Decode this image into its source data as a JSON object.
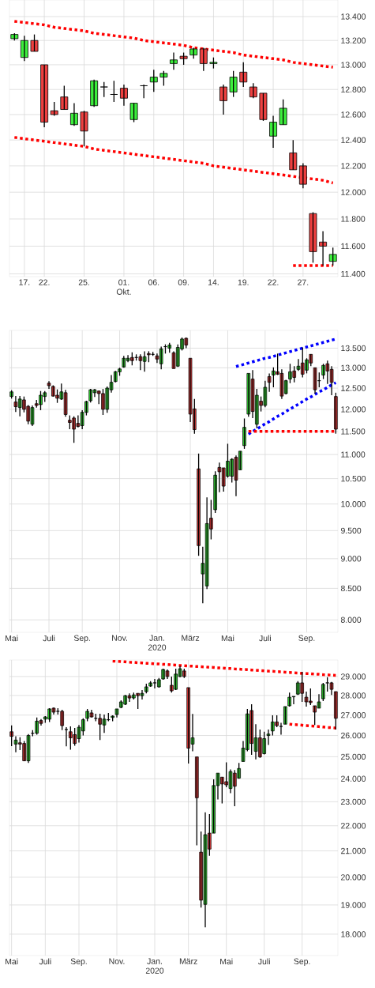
{
  "chart_data": [
    {
      "type": "candlestick",
      "log": true,
      "grid": true,
      "categories": [
        null,
        "17.",
        null,
        "22.",
        null,
        null,
        null,
        "25.",
        null,
        null,
        null,
        "01. Okt.",
        null,
        null,
        "06.",
        null,
        null,
        "09.",
        null,
        null,
        "14.",
        null,
        null,
        "19.",
        null,
        null,
        "22.",
        null,
        null,
        "27.",
        null,
        null,
        null
      ],
      "ohlc": [
        [
          13215,
          13260,
          13200,
          13250
        ],
        [
          13060,
          13240,
          13030,
          13200
        ],
        [
          13200,
          13250,
          13110,
          13110
        ],
        [
          13000,
          13000,
          12500,
          12540
        ],
        [
          12630,
          12700,
          12590,
          12600
        ],
        [
          12740,
          12830,
          12640,
          12640
        ],
        [
          12520,
          12690,
          12510,
          12610
        ],
        [
          12620,
          12630,
          12350,
          12470
        ],
        [
          12670,
          12880,
          12660,
          12870
        ],
        [
          12820,
          12860,
          12740,
          12820
        ],
        [
          12760,
          12870,
          12700,
          12760
        ],
        [
          12810,
          12840,
          12670,
          12730
        ],
        [
          12560,
          12690,
          12540,
          12690
        ],
        [
          12830,
          12840,
          12730,
          12830
        ],
        [
          12860,
          12960,
          12780,
          12900
        ],
        [
          12900,
          12950,
          12830,
          12930
        ],
        [
          13010,
          13100,
          12960,
          13040
        ],
        [
          13070,
          13100,
          13000,
          13050
        ],
        [
          13080,
          13140,
          13050,
          13130
        ],
        [
          13130,
          13140,
          12950,
          13010
        ],
        [
          13010,
          13060,
          12970,
          13020
        ],
        [
          12820,
          12840,
          12600,
          12710
        ],
        [
          12780,
          12950,
          12740,
          12900
        ],
        [
          12940,
          13020,
          12820,
          12860
        ],
        [
          12820,
          12850,
          12730,
          12740
        ],
        [
          12770,
          12770,
          12550,
          12560
        ],
        [
          12430,
          12590,
          12340,
          12540
        ],
        [
          12520,
          12720,
          12520,
          12650
        ],
        [
          12300,
          12400,
          12170,
          12170
        ],
        [
          12200,
          12220,
          12030,
          12060
        ],
        [
          11840,
          11850,
          11480,
          11560
        ],
        [
          11630,
          11710,
          11460,
          11600
        ],
        [
          11490,
          11590,
          11460,
          11540
        ]
      ],
      "colors": [
        "#3cee3c",
        "#3cee3c",
        "#ee4040",
        "#ee4040",
        "#ee4040",
        "#ee4040",
        "#3cee3c",
        "#ee4040",
        "#3cee3c",
        "#000000",
        "#000000",
        "#ee4040",
        "#3cee3c",
        "#000000",
        "#3cee3c",
        "#3cee3c",
        "#3cee3c",
        "#ee4040",
        "#3cee3c",
        "#ee4040",
        "#3cee3c",
        "#ee4040",
        "#3cee3c",
        "#ee4040",
        "#ee4040",
        "#ee4040",
        "#3cee3c",
        "#3cee3c",
        "#ee4040",
        "#ee4040",
        "#ee4040",
        "#ee4040",
        "#3cee3c"
      ],
      "ylim": [
        11380,
        13540
      ],
      "yticks": [
        {
          "value": 11400,
          "label": "11.400"
        },
        {
          "value": 11600,
          "label": "11.600"
        },
        {
          "value": 11800,
          "label": "11.800"
        },
        {
          "value": 12000,
          "label": "12.000"
        },
        {
          "value": 12200,
          "label": "12.200"
        },
        {
          "value": 12400,
          "label": "12.400"
        },
        {
          "value": 12600,
          "label": "12.600"
        },
        {
          "value": 12800,
          "label": "12.800"
        },
        {
          "value": 13000,
          "label": "13.000"
        },
        {
          "value": 13200,
          "label": "13.200"
        },
        {
          "value": 13400,
          "label": "13.400"
        }
      ],
      "series": [
        {
          "type": "line",
          "color": "#ff0000",
          "line_style": "dotted",
          "values": [
            13360,
            13350,
            13340,
            13330,
            13310,
            13300,
            13290,
            13280,
            13260,
            13250,
            13240,
            13230,
            13220,
            13200,
            13190,
            13180,
            13170,
            13160,
            13140,
            13130,
            13120,
            13110,
            13100,
            13080,
            13070,
            13060,
            13050,
            13040,
            13020,
            13010,
            13000,
            12990,
            12980
          ]
        },
        {
          "type": "line",
          "color": "#ff0000",
          "line_style": "dotted",
          "values": [
            12420,
            12410,
            12400,
            12390,
            12380,
            12370,
            12360,
            12350,
            12330,
            12320,
            12310,
            12300,
            12290,
            12280,
            12270,
            12260,
            12250,
            12240,
            12230,
            12220,
            12200,
            12190,
            12180,
            12170,
            12160,
            12150,
            12140,
            12130,
            12120,
            12110,
            12100,
            12090,
            12070
          ]
        },
        {
          "type": "line",
          "color": "#ff0000",
          "line_style": "dotted",
          "values": [
            null,
            null,
            null,
            null,
            null,
            null,
            null,
            null,
            null,
            null,
            null,
            null,
            null,
            null,
            null,
            null,
            null,
            null,
            null,
            null,
            null,
            null,
            null,
            null,
            null,
            null,
            null,
            null,
            11460,
            11460,
            11460,
            11460,
            11460
          ]
        }
      ]
    },
    {
      "type": "candlestick",
      "log": true,
      "grid": true,
      "categories": [
        "Mai",
        null,
        null,
        null,
        null,
        null,
        null,
        null,
        null,
        "Juli",
        null,
        null,
        null,
        null,
        null,
        null,
        null,
        "Sep.",
        null,
        null,
        null,
        null,
        null,
        null,
        null,
        null,
        "Nov.",
        null,
        null,
        null,
        null,
        null,
        null,
        null,
        null,
        "Jan. 2020",
        null,
        null,
        null,
        null,
        null,
        null,
        null,
        "März",
        null,
        null,
        null,
        null,
        null,
        null,
        null,
        null,
        "Mai",
        null,
        null,
        null,
        null,
        null,
        null,
        null,
        null,
        "Juli",
        null,
        null,
        null,
        null,
        null,
        null,
        null,
        null,
        null,
        "Sep.",
        null,
        null,
        null,
        null,
        null,
        null,
        null
      ],
      "ohlc": [
        [
          12300,
          12450,
          12250,
          12410
        ],
        [
          12170,
          12310,
          11940,
          12060
        ],
        [
          12040,
          12310,
          11840,
          12240
        ],
        [
          12220,
          12300,
          11930,
          12000
        ],
        [
          12070,
          12100,
          11660,
          11730
        ],
        [
          11660,
          12090,
          11620,
          12040
        ],
        [
          12130,
          12220,
          12040,
          12090
        ],
        [
          12110,
          12430,
          11980,
          12330
        ],
        [
          12300,
          12430,
          12170,
          12390
        ],
        [
          12620,
          12670,
          12480,
          12560
        ],
        [
          12540,
          12570,
          12300,
          12310
        ],
        [
          12330,
          12470,
          12150,
          12260
        ],
        [
          12240,
          12610,
          12220,
          12410
        ],
        [
          12390,
          12460,
          11830,
          11880
        ],
        [
          11750,
          11860,
          11550,
          11700
        ],
        [
          11800,
          11840,
          11250,
          11550
        ],
        [
          11680,
          11860,
          11590,
          11610
        ],
        [
          11630,
          11980,
          11550,
          11930
        ],
        [
          11930,
          12200,
          11860,
          12180
        ],
        [
          12200,
          12480,
          12160,
          12460
        ],
        [
          12390,
          12480,
          12290,
          12460
        ],
        [
          12430,
          12440,
          12120,
          12370
        ],
        [
          12370,
          12480,
          11870,
          12000
        ],
        [
          12000,
          12540,
          11920,
          12500
        ],
        [
          12460,
          12820,
          12390,
          12640
        ],
        [
          12660,
          12920,
          12640,
          12900
        ],
        [
          12900,
          13000,
          12800,
          12970
        ],
        [
          13020,
          13300,
          13000,
          13240
        ],
        [
          13180,
          13320,
          13140,
          13240
        ],
        [
          13260,
          13390,
          13060,
          13180
        ],
        [
          13260,
          13340,
          13180,
          13260
        ],
        [
          13280,
          13340,
          12940,
          13180
        ],
        [
          13160,
          13420,
          12900,
          13280
        ],
        [
          13360,
          13420,
          13140,
          13330
        ],
        [
          13340,
          13400,
          13300,
          13340
        ],
        [
          13300,
          13360,
          13120,
          13220
        ],
        [
          13100,
          13540,
          12960,
          13480
        ],
        [
          13540,
          13600,
          13360,
          13540
        ],
        [
          13500,
          13640,
          13380,
          13580
        ],
        [
          13380,
          13420,
          12980,
          12980
        ],
        [
          13040,
          13600,
          13020,
          13520
        ],
        [
          13480,
          13780,
          13440,
          13740
        ],
        [
          13760,
          13780,
          13500,
          13580
        ],
        [
          13240,
          13240,
          11710,
          11890
        ],
        [
          12010,
          12240,
          11450,
          11540
        ],
        [
          10700,
          11020,
          9050,
          9230
        ],
        [
          8740,
          9210,
          8260,
          8920
        ],
        [
          8540,
          10130,
          8490,
          9630
        ],
        [
          9730,
          10080,
          9340,
          9530
        ],
        [
          9890,
          10650,
          9830,
          10570
        ],
        [
          10730,
          10830,
          10230,
          10640
        ],
        [
          10720,
          10720,
          10240,
          10350
        ],
        [
          10550,
          11230,
          10520,
          10860
        ],
        [
          10550,
          10920,
          10420,
          10900
        ],
        [
          10940,
          10980,
          10150,
          10470
        ],
        [
          10680,
          11070,
          10680,
          11070
        ],
        [
          11190,
          11790,
          11120,
          11590
        ],
        [
          11890,
          12860,
          11830,
          12860
        ],
        [
          12720,
          12940,
          11800,
          11950
        ],
        [
          11660,
          12480,
          11570,
          12330
        ],
        [
          12190,
          12300,
          11950,
          12090
        ],
        [
          12090,
          12680,
          12050,
          12520
        ],
        [
          12780,
          12860,
          12410,
          12640
        ],
        [
          12820,
          13010,
          12520,
          12920
        ],
        [
          12900,
          13360,
          12820,
          12840
        ],
        [
          12860,
          12960,
          12240,
          12310
        ],
        [
          12370,
          12700,
          12350,
          12680
        ],
        [
          12720,
          13100,
          12620,
          12900
        ],
        [
          12920,
          13040,
          12640,
          12760
        ],
        [
          12960,
          13220,
          12920,
          13040
        ],
        [
          13120,
          13520,
          12760,
          12840
        ],
        [
          12940,
          13240,
          12860,
          13200
        ],
        [
          13340,
          13340,
          13040,
          13120
        ],
        [
          13000,
          13000,
          12370,
          12460
        ],
        [
          12680,
          12880,
          12520,
          12680
        ],
        [
          12820,
          13100,
          12720,
          13060
        ],
        [
          13100,
          13180,
          12600,
          12920
        ],
        [
          12960,
          13040,
          12330,
          12640
        ],
        [
          12300,
          12390,
          11450,
          11550
        ]
      ],
      "colors": [
        "#3cee3c",
        "#ee4040",
        "#3cee3c",
        "#ee4040",
        "#ee4040",
        "#3cee3c",
        "#ee4040",
        "#3cee3c",
        "#3cee3c",
        "#ee4040",
        "#ee4040",
        "#ee4040",
        "#3cee3c",
        "#ee4040",
        "#ee4040",
        "#ee4040",
        "#ee4040",
        "#3cee3c",
        "#3cee3c",
        "#3cee3c",
        "#3cee3c",
        "#ee4040",
        "#ee4040",
        "#3cee3c",
        "#3cee3c",
        "#3cee3c",
        "#3cee3c",
        "#3cee3c",
        "#3cee3c",
        "#ee4040",
        "#000000",
        "#ee4040",
        "#3cee3c",
        "#ee4040",
        "#000000",
        "#ee4040",
        "#3cee3c",
        "#000000",
        "#3cee3c",
        "#ee4040",
        "#3cee3c",
        "#3cee3c",
        "#ee4040",
        "#ee4040",
        "#ee4040",
        "#ee4040",
        "#3cee3c",
        "#3cee3c",
        "#ee4040",
        "#3cee3c",
        "#ee4040",
        "#ee4040",
        "#3cee3c",
        "#3cee3c",
        "#ee4040",
        "#3cee3c",
        "#3cee3c",
        "#3cee3c",
        "#ee4040",
        "#3cee3c",
        "#ee4040",
        "#3cee3c",
        "#ee4040",
        "#3cee3c",
        "#ee4040",
        "#ee4040",
        "#3cee3c",
        "#3cee3c",
        "#ee4040",
        "#3cee3c",
        "#ee4040",
        "#3cee3c",
        "#ee4040",
        "#ee4040",
        "#000000",
        "#3cee3c",
        "#ee4040",
        "#ee4040",
        "#ee4040"
      ],
      "ylim": [
        7810,
        13970
      ],
      "yticks": [
        {
          "value": 8000,
          "label": "8.000"
        },
        {
          "value": 8500,
          "label": "8.500"
        },
        {
          "value": 9000,
          "label": "9.000"
        },
        {
          "value": 9500,
          "label": "9.500"
        },
        {
          "value": 10000,
          "label": "10.000"
        },
        {
          "value": 10500,
          "label": "10.500"
        },
        {
          "value": 11000,
          "label": "11.000"
        },
        {
          "value": 11500,
          "label": "11.500"
        },
        {
          "value": 12000,
          "label": "12.000"
        },
        {
          "value": 12500,
          "label": "12.500"
        },
        {
          "value": 13000,
          "label": "13.000"
        },
        {
          "value": 13500,
          "label": "13.500"
        }
      ],
      "series": [
        {
          "type": "line",
          "color": "#0000ff",
          "line_style": "dotted",
          "values": [
            null,
            null,
            null,
            null,
            null,
            null,
            null,
            null,
            null,
            null,
            null,
            null,
            null,
            null,
            null,
            null,
            null,
            null,
            null,
            null,
            null,
            null,
            null,
            null,
            null,
            null,
            null,
            null,
            null,
            null,
            null,
            null,
            null,
            null,
            null,
            null,
            null,
            null,
            null,
            null,
            null,
            null,
            null,
            null,
            null,
            null,
            null,
            null,
            null,
            null,
            null,
            null,
            null,
            null,
            13030,
            13060,
            13090,
            13120,
            13150,
            13180,
            13210,
            13240,
            13260,
            13290,
            13320,
            13350,
            13380,
            13410,
            13440,
            13470,
            13500,
            13530,
            13560,
            13590,
            13620,
            13650,
            13680,
            13710,
            13740
          ]
        },
        {
          "type": "line",
          "color": "#0000ff",
          "line_style": "dotted",
          "values": [
            null,
            null,
            null,
            null,
            null,
            null,
            null,
            null,
            null,
            null,
            null,
            null,
            null,
            null,
            null,
            null,
            null,
            null,
            null,
            null,
            null,
            null,
            null,
            null,
            null,
            null,
            null,
            null,
            null,
            null,
            null,
            null,
            null,
            null,
            null,
            null,
            null,
            null,
            null,
            null,
            null,
            null,
            null,
            null,
            null,
            null,
            null,
            null,
            null,
            null,
            null,
            null,
            null,
            null,
            null,
            null,
            null,
            11440,
            11500,
            11550,
            11610,
            11670,
            11720,
            11780,
            11840,
            11890,
            11950,
            12010,
            12060,
            12120,
            12180,
            12240,
            12290,
            12350,
            12410,
            12460,
            12520,
            12580,
            12630
          ]
        },
        {
          "type": "line",
          "color": "#ff0000",
          "line_style": "dotted",
          "values": [
            null,
            null,
            null,
            null,
            null,
            null,
            null,
            null,
            null,
            null,
            null,
            null,
            null,
            null,
            null,
            null,
            null,
            null,
            null,
            null,
            null,
            null,
            null,
            null,
            null,
            null,
            null,
            null,
            null,
            null,
            null,
            null,
            null,
            null,
            null,
            null,
            null,
            null,
            null,
            null,
            null,
            null,
            null,
            null,
            null,
            null,
            null,
            null,
            null,
            null,
            null,
            null,
            null,
            null,
            null,
            null,
            null,
            11500,
            11500,
            11500,
            11500,
            11500,
            11500,
            11500,
            11500,
            11500,
            11500,
            11500,
            11500,
            11500,
            11500,
            11500,
            11500,
            11500,
            11500,
            11500,
            11500,
            11500,
            11500
          ]
        }
      ]
    },
    {
      "type": "candlestick",
      "log": true,
      "grid": true,
      "categories": [
        "Mai",
        null,
        null,
        null,
        null,
        null,
        null,
        null,
        "Juli",
        null,
        null,
        null,
        null,
        null,
        null,
        null,
        "Sep.",
        null,
        null,
        null,
        null,
        null,
        null,
        null,
        null,
        "Nov.",
        null,
        null,
        null,
        null,
        null,
        null,
        null,
        null,
        "Jan. 2020",
        null,
        null,
        null,
        null,
        null,
        null,
        null,
        "März",
        null,
        null,
        null,
        null,
        null,
        null,
        null,
        null,
        "Mai",
        null,
        null,
        null,
        null,
        null,
        null,
        null,
        null,
        "Juli",
        null,
        null,
        null,
        null,
        null,
        null,
        null,
        null,
        "Sep.",
        null,
        null,
        null,
        null,
        null,
        null,
        null,
        null
      ],
      "ohlc": [
        [
          26180,
          26490,
          25490,
          25960
        ],
        [
          25590,
          25960,
          25210,
          25780
        ],
        [
          25650,
          25920,
          25310,
          25590
        ],
        [
          25620,
          25740,
          24790,
          24810
        ],
        [
          24810,
          26070,
          24710,
          26000
        ],
        [
          26110,
          26260,
          25960,
          26110
        ],
        [
          26110,
          26880,
          26040,
          26700
        ],
        [
          26730,
          26800,
          26480,
          26590
        ],
        [
          26800,
          26950,
          26620,
          26910
        ],
        [
          26800,
          27350,
          26660,
          27310
        ],
        [
          27350,
          27390,
          27030,
          27150
        ],
        [
          27190,
          27350,
          27030,
          27190
        ],
        [
          27190,
          27270,
          26260,
          26480
        ],
        [
          26290,
          26400,
          25480,
          26290
        ],
        [
          26180,
          26440,
          25330,
          25890
        ],
        [
          26040,
          26370,
          25510,
          25620
        ],
        [
          25850,
          26510,
          25660,
          26400
        ],
        [
          26220,
          26840,
          26000,
          26770
        ],
        [
          26840,
          27310,
          26700,
          27190
        ],
        [
          27110,
          27270,
          26880,
          26910
        ],
        [
          26840,
          27070,
          26700,
          26840
        ],
        [
          26840,
          27070,
          25780,
          26550
        ],
        [
          26510,
          27030,
          26130,
          26800
        ],
        [
          26770,
          27110,
          26700,
          26770
        ],
        [
          26880,
          26990,
          26700,
          26950
        ],
        [
          27030,
          27310,
          26880,
          27310
        ],
        [
          27390,
          27750,
          27350,
          27670
        ],
        [
          27550,
          28030,
          27510,
          27990
        ],
        [
          27990,
          28110,
          27670,
          27870
        ],
        [
          27870,
          28150,
          27790,
          28030
        ],
        [
          28110,
          28110,
          27310,
          27990
        ],
        [
          27990,
          28280,
          27790,
          28110
        ],
        [
          28200,
          28620,
          28110,
          28450
        ],
        [
          28490,
          28750,
          28450,
          28660
        ],
        [
          28660,
          28870,
          28370,
          28660
        ],
        [
          28450,
          28920,
          28410,
          28830
        ],
        [
          28870,
          29420,
          28830,
          29380
        ],
        [
          29300,
          29380,
          28870,
          29000
        ],
        [
          28530,
          29000,
          28150,
          28240
        ],
        [
          28320,
          29420,
          28280,
          29130
        ],
        [
          29000,
          29590,
          28960,
          29420
        ],
        [
          29300,
          29420,
          28920,
          29000
        ],
        [
          28410,
          28410,
          24690,
          25400
        ],
        [
          25590,
          27060,
          25250,
          25890
        ],
        [
          24990,
          24990,
          21220,
          23170
        ],
        [
          20950,
          21770,
          18910,
          19170
        ],
        [
          19020,
          22550,
          18230,
          21640
        ],
        [
          21700,
          22480,
          20810,
          21070
        ],
        [
          21700,
          23970,
          21700,
          23700
        ],
        [
          23700,
          24250,
          23100,
          24250
        ],
        [
          24070,
          24070,
          22930,
          23770
        ],
        [
          23870,
          24740,
          23630,
          23730
        ],
        [
          23570,
          24420,
          23370,
          24320
        ],
        [
          24250,
          24390,
          22810,
          23670
        ],
        [
          24030,
          24710,
          24000,
          24460
        ],
        [
          24780,
          25740,
          24780,
          25400
        ],
        [
          25330,
          27310,
          25250,
          27060
        ],
        [
          27230,
          27550,
          25090,
          25620
        ],
        [
          25250,
          26550,
          24880,
          25890
        ],
        [
          25890,
          26290,
          24950,
          24990
        ],
        [
          25140,
          26180,
          25100,
          25850
        ],
        [
          26000,
          26290,
          25550,
          26070
        ],
        [
          26220,
          26990,
          26000,
          26660
        ],
        [
          26660,
          26990,
          26400,
          26480
        ],
        [
          26440,
          26620,
          26040,
          26440
        ],
        [
          26550,
          27430,
          26550,
          27430
        ],
        [
          27470,
          28150,
          27430,
          27910
        ],
        [
          27930,
          27950,
          27550,
          27950
        ],
        [
          28070,
          28750,
          28030,
          28660
        ],
        [
          28660,
          29250,
          27670,
          28110
        ],
        [
          27910,
          28200,
          27430,
          27670
        ],
        [
          27710,
          28370,
          27510,
          27630
        ],
        [
          27470,
          27470,
          26510,
          27150
        ],
        [
          27350,
          28070,
          27350,
          27670
        ],
        [
          27830,
          28660,
          27710,
          28580
        ],
        [
          28660,
          28960,
          28200,
          28660
        ],
        [
          28660,
          28710,
          28030,
          28320
        ],
        [
          28200,
          28200,
          26290,
          26840
        ]
      ],
      "colors": [
        "#ee4040",
        "#3cee3c",
        "#ee4040",
        "#ee4040",
        "#3cee3c",
        "#000000",
        "#3cee3c",
        "#ee4040",
        "#3cee3c",
        "#3cee3c",
        "#ee4040",
        "#000000",
        "#ee4040",
        "#000000",
        "#ee4040",
        "#ee4040",
        "#3cee3c",
        "#3cee3c",
        "#3cee3c",
        "#ee4040",
        "#000000",
        "#ee4040",
        "#3cee3c",
        "#000000",
        "#3cee3c",
        "#3cee3c",
        "#3cee3c",
        "#3cee3c",
        "#ee4040",
        "#3cee3c",
        "#ee4040",
        "#3cee3c",
        "#3cee3c",
        "#3cee3c",
        "#000000",
        "#3cee3c",
        "#3cee3c",
        "#ee4040",
        "#ee4040",
        "#3cee3c",
        "#3cee3c",
        "#ee4040",
        "#ee4040",
        "#3cee3c",
        "#ee4040",
        "#ee4040",
        "#3cee3c",
        "#ee4040",
        "#3cee3c",
        "#3cee3c",
        "#ee4040",
        "#ee4040",
        "#3cee3c",
        "#ee4040",
        "#3cee3c",
        "#3cee3c",
        "#3cee3c",
        "#ee4040",
        "#3cee3c",
        "#ee4040",
        "#3cee3c",
        "#3cee3c",
        "#3cee3c",
        "#ee4040",
        "#000000",
        "#3cee3c",
        "#3cee3c",
        "#3cee3c",
        "#3cee3c",
        "#ee4040",
        "#ee4040",
        "#ee4040",
        "#ee4040",
        "#3cee3c",
        "#3cee3c",
        "#000000",
        "#ee4040",
        "#ee4040"
      ],
      "ylim": [
        17300,
        29900
      ],
      "yticks": [
        {
          "value": 18000,
          "label": "18.000"
        },
        {
          "value": 19000,
          "label": "19.000"
        },
        {
          "value": 20000,
          "label": "20.000"
        },
        {
          "value": 21000,
          "label": "21.000"
        },
        {
          "value": 22000,
          "label": "22.000"
        },
        {
          "value": 23000,
          "label": "23.000"
        },
        {
          "value": 24000,
          "label": "24.000"
        },
        {
          "value": 25000,
          "label": "25.000"
        },
        {
          "value": 26000,
          "label": "26.000"
        },
        {
          "value": 27000,
          "label": "27.000"
        },
        {
          "value": 28000,
          "label": "28.000"
        },
        {
          "value": 29000,
          "label": "29.000"
        }
      ],
      "series": [
        {
          "type": "line",
          "color": "#ff0000",
          "line_style": "dotted",
          "values": [
            null,
            null,
            null,
            null,
            null,
            null,
            null,
            null,
            null,
            null,
            null,
            null,
            null,
            null,
            null,
            null,
            null,
            null,
            null,
            null,
            null,
            null,
            null,
            null,
            29840,
            29830,
            29810,
            29800,
            29780,
            29770,
            29750,
            29740,
            29720,
            29710,
            29690,
            29680,
            29660,
            29650,
            29630,
            29620,
            29600,
            29590,
            29570,
            29560,
            29540,
            29530,
            29520,
            29500,
            29490,
            29470,
            29460,
            29440,
            29430,
            29410,
            29400,
            29380,
            29370,
            29350,
            29340,
            29320,
            29310,
            29290,
            29280,
            29260,
            29250,
            29230,
            29220,
            29200,
            29190,
            29170,
            29160,
            29150,
            29130,
            29120,
            29100,
            29090,
            29070,
            29060
          ]
        },
        {
          "type": "line",
          "color": "#ff0000",
          "line_style": "dotted",
          "values": [
            null,
            null,
            null,
            null,
            null,
            null,
            null,
            null,
            null,
            null,
            null,
            null,
            null,
            null,
            null,
            null,
            null,
            null,
            null,
            null,
            null,
            null,
            null,
            null,
            null,
            null,
            null,
            null,
            null,
            null,
            null,
            null,
            null,
            null,
            null,
            null,
            null,
            null,
            null,
            null,
            null,
            null,
            null,
            null,
            null,
            null,
            null,
            null,
            null,
            null,
            null,
            null,
            null,
            null,
            null,
            null,
            null,
            null,
            null,
            null,
            null,
            null,
            null,
            null,
            null,
            null,
            26550,
            26530,
            26520,
            26500,
            26480,
            26460,
            26450,
            26430,
            26410,
            26390,
            26380,
            26360
          ]
        }
      ]
    }
  ]
}
